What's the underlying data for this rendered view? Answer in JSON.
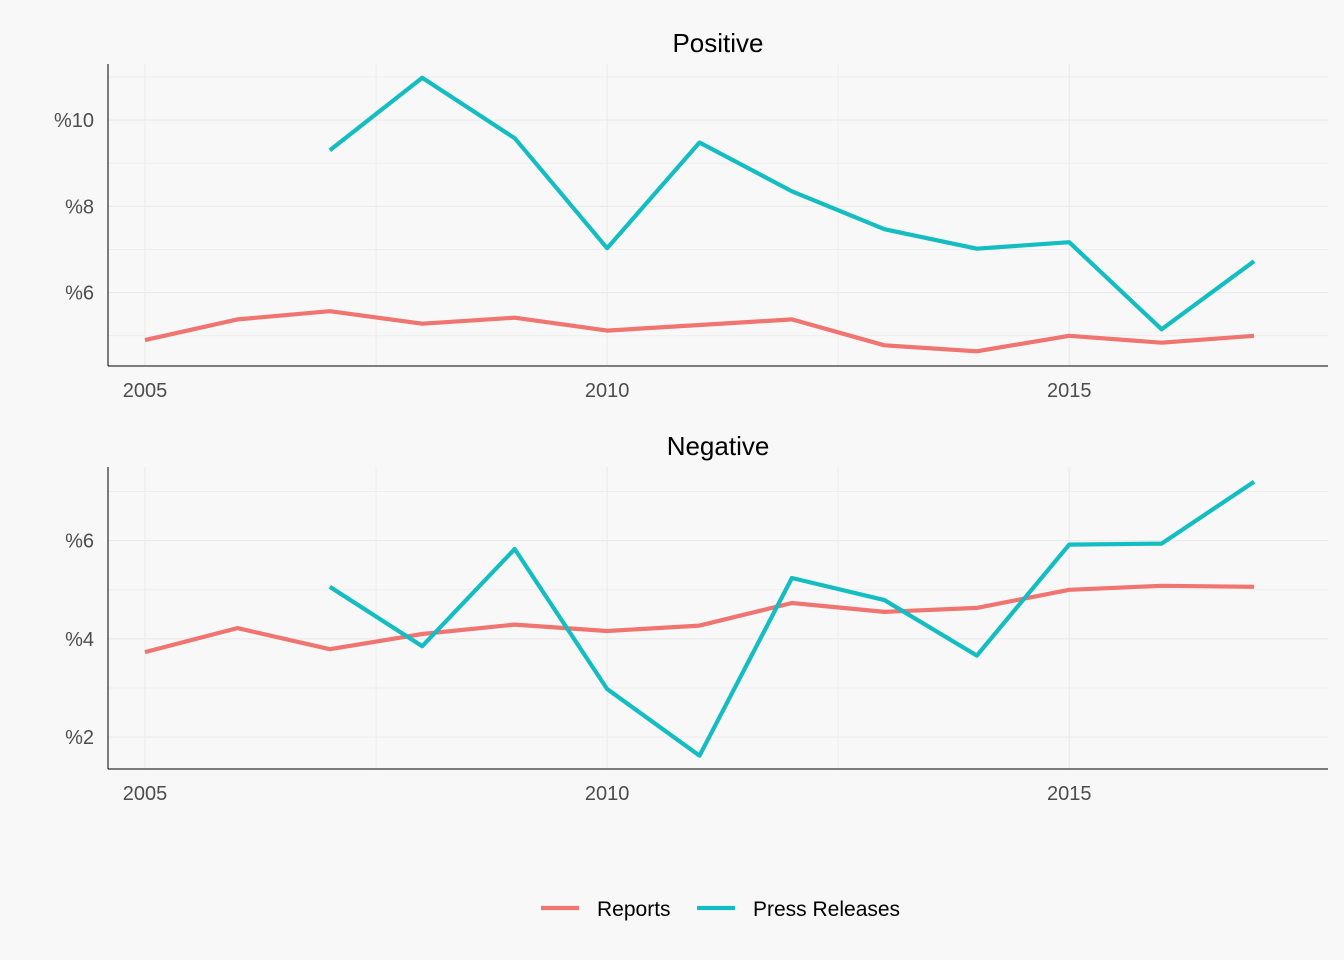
{
  "chart_data": [
    {
      "type": "line",
      "title": "Positive",
      "xlabel": "",
      "ylabel": "",
      "x": [
        2005,
        2006,
        2007,
        2008,
        2009,
        2010,
        2011,
        2012,
        2013,
        2014,
        2015,
        2016,
        2017
      ],
      "xlim": [
        2004.6,
        2017.8
      ],
      "ylim": [
        4.3,
        11.3
      ],
      "xticks": [
        2005,
        2010,
        2015
      ],
      "xtick_labels": [
        "2005",
        "2010",
        "2015"
      ],
      "yticks": [
        6,
        8,
        10
      ],
      "ytick_labels": [
        "%6",
        "%8",
        "%10"
      ],
      "grid": true,
      "series": [
        {
          "name": "Reports",
          "color": "#f07470",
          "values": [
            4.9,
            5.38,
            5.57,
            5.28,
            5.42,
            5.12,
            5.25,
            5.38,
            4.78,
            4.64,
            5.0,
            4.84,
            5.0
          ]
        },
        {
          "name": "Press Releases",
          "color": "#13bdc1",
          "values": [
            null,
            null,
            9.3,
            10.98,
            9.58,
            7.03,
            9.48,
            8.35,
            7.47,
            7.02,
            7.17,
            5.15,
            6.73
          ]
        }
      ]
    },
    {
      "type": "line",
      "title": "Negative",
      "xlabel": "",
      "ylabel": "",
      "x": [
        2005,
        2006,
        2007,
        2008,
        2009,
        2010,
        2011,
        2012,
        2013,
        2014,
        2015,
        2016,
        2017
      ],
      "xlim": [
        2004.6,
        2017.8
      ],
      "ylim": [
        1.35,
        7.5
      ],
      "xticks": [
        2005,
        2010,
        2015
      ],
      "xtick_labels": [
        "2005",
        "2010",
        "2015"
      ],
      "yticks": [
        2,
        4,
        6
      ],
      "ytick_labels": [
        "%2",
        "%4",
        "%6"
      ],
      "grid": true,
      "series": [
        {
          "name": "Reports",
          "color": "#f07470",
          "values": [
            3.73,
            4.22,
            3.79,
            4.1,
            4.29,
            4.16,
            4.27,
            4.73,
            4.55,
            4.63,
            5.0,
            5.08,
            5.06
          ]
        },
        {
          "name": "Press Releases",
          "color": "#13bdc1",
          "values": [
            null,
            null,
            5.06,
            3.85,
            5.83,
            2.98,
            1.62,
            5.24,
            4.79,
            3.66,
            5.92,
            5.94,
            7.2
          ]
        }
      ]
    }
  ],
  "legend": {
    "position": "bottom",
    "items": [
      {
        "label": "Reports",
        "color": "#f07470"
      },
      {
        "label": "Press Releases",
        "color": "#13bdc1"
      }
    ]
  }
}
